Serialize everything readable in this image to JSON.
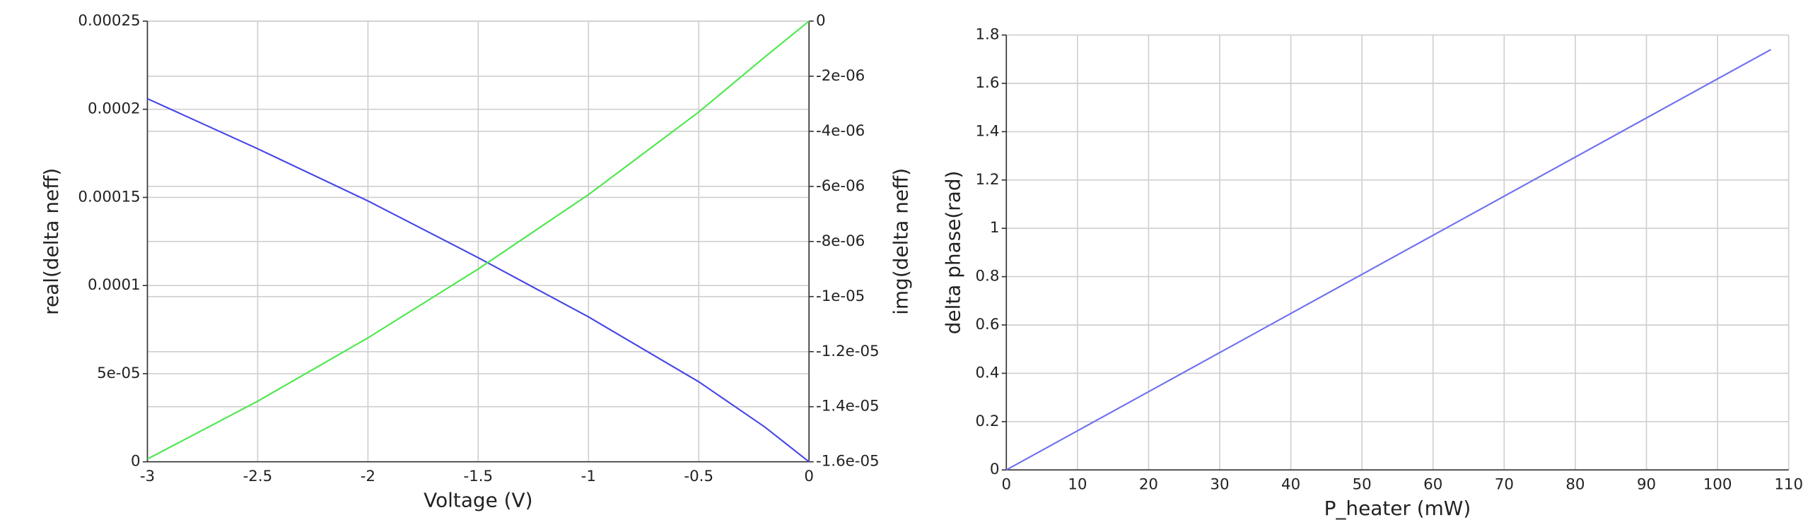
{
  "chart_data": [
    {
      "type": "line",
      "x_label": "Voltage (V)",
      "y_label": "real(delta neff)",
      "y2_label": "img(delta neff)",
      "x": [
        -3,
        -2.5,
        -2,
        -1.5,
        -1,
        -0.5,
        -0.2,
        0
      ],
      "series": [
        {
          "name": "real(delta neff)",
          "color": "#4646e8",
          "values": [
            0.000206,
            0.0001776,
            0.000148,
            0.0001158,
            8.22e-05,
            4.54e-05,
            1.97e-05,
            0
          ]
        },
        {
          "name": "img(delta neff)",
          "color": "#4ce84c",
          "axis": "y2",
          "values": [
            -1.59e-05,
            -1.38e-05,
            -1.15e-05,
            -9e-06,
            -6.3e-06,
            -3.3e-06,
            -1.3e-06,
            0
          ]
        }
      ],
      "xlim": [
        -3,
        0
      ],
      "xticks": [
        -3,
        -2.5,
        -2,
        -1.5,
        -1,
        -0.5,
        0
      ],
      "ylim": [
        0,
        0.00025
      ],
      "yticks": [
        0,
        {
          "value": 5e-05,
          "label": "5e-05"
        },
        0.0001,
        0.00015,
        0.0002,
        0.00025
      ],
      "y2lim": [
        -1.6e-05,
        0
      ],
      "y2ticks": [
        0,
        {
          "value": -2e-06,
          "label": "-2e-06"
        },
        {
          "value": -4e-06,
          "label": "-4e-06"
        },
        {
          "value": -6e-06,
          "label": "-6e-06"
        },
        {
          "value": -8e-06,
          "label": "-8e-06"
        },
        {
          "value": -1e-05,
          "label": "-1e-05"
        },
        {
          "value": -1.2e-05,
          "label": "-1.2e-05"
        },
        {
          "value": -1.4e-05,
          "label": "-1.4e-05"
        },
        {
          "value": -1.6e-05,
          "label": "-1.6e-05"
        }
      ],
      "grid": true
    },
    {
      "type": "line",
      "x_label": "P_heater (mW)",
      "y_label": "delta phase(rad)",
      "x": [
        0,
        107.5
      ],
      "series": [
        {
          "name": "delta phase(rad)",
          "color": "#7070f0",
          "values": [
            0,
            1.74
          ]
        }
      ],
      "xlim": [
        0,
        110
      ],
      "xticks": [
        0,
        10,
        20,
        30,
        40,
        50,
        60,
        70,
        80,
        90,
        100,
        110
      ],
      "ylim": [
        0,
        1.8
      ],
      "yticks": [
        0,
        0.2,
        0.4,
        0.6,
        0.8,
        1,
        1.2,
        1.4,
        1.6,
        1.8
      ],
      "grid": true
    }
  ]
}
